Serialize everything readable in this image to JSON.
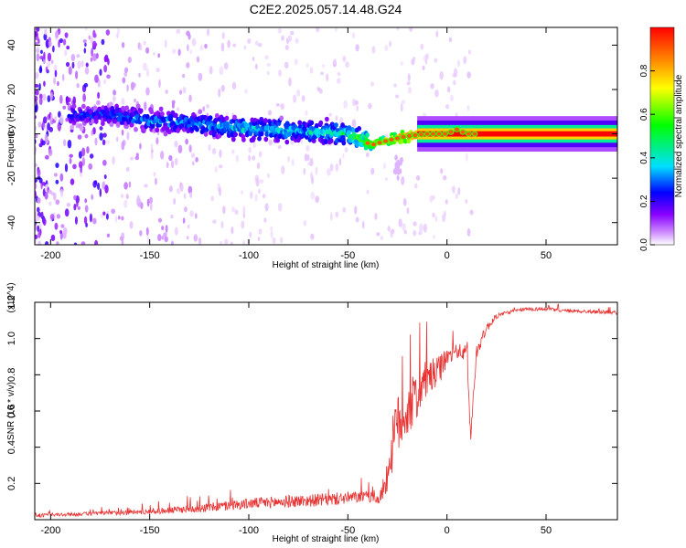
{
  "figure": {
    "title": "C2E2.2025.057.14.48.G24"
  },
  "chart_data": [
    {
      "type": "heatmap",
      "xlabel": "Height of straight line (km)",
      "ylabel": "Frequency (Hz)",
      "xlim": [
        -208,
        86
      ],
      "ylim": [
        -50,
        48
      ],
      "xticks": [
        -200,
        -150,
        -100,
        -50,
        0,
        50
      ],
      "yticks": [
        -40,
        -20,
        0,
        20,
        40
      ],
      "colorbar": {
        "label": "Normalized spectral amplitude",
        "range": [
          0,
          1
        ],
        "ticks": [
          0.0,
          0.2,
          0.4,
          0.6,
          0.8
        ],
        "colors": [
          "#ffffff",
          "#cc88ff",
          "#8800ff",
          "#0000ff",
          "#00e0ff",
          "#00ff00",
          "#ffff00",
          "#ff8800",
          "#ff0000"
        ]
      },
      "ridge": {
        "x": [
          -190,
          -170,
          -150,
          -130,
          -110,
          -90,
          -70,
          -50,
          -38,
          -30,
          -20,
          -10,
          0,
          5,
          10,
          20,
          50,
          86
        ],
        "y": [
          8,
          9,
          6,
          5,
          3,
          2,
          1,
          0,
          -5,
          -3,
          -1,
          0,
          0,
          2,
          0,
          0,
          0,
          0
        ],
        "amplitude": [
          0.35,
          0.4,
          0.45,
          0.45,
          0.5,
          0.5,
          0.5,
          0.55,
          0.7,
          0.8,
          0.9,
          0.95,
          0.95,
          0.95,
          0.95,
          1.0,
          1.0,
          1.0
        ]
      },
      "ridge_start_km": -190,
      "solid_line_start_km": -15
    },
    {
      "type": "line",
      "xlabel": "Height of straight line (km)",
      "ylabel": "SNR (10 * v/v)",
      "y_multiplier": "(x10^4)",
      "xlim": [
        -208,
        86
      ],
      "ylim": [
        0,
        1.2
      ],
      "xticks": [
        -200,
        -150,
        -100,
        -50,
        0,
        50
      ],
      "yticks": [
        0.2,
        0.4,
        0.6,
        0.8,
        1.0,
        1.2
      ],
      "series": [
        {
          "color": "#e83232",
          "envelope": {
            "x": [
              -208,
              -180,
              -150,
              -120,
              -100,
              -80,
              -60,
              -50,
              -40,
              -34,
              -30,
              -26,
              -20,
              -15,
              -10,
              -5,
              0,
              5,
              10,
              12,
              15,
              20,
              25,
              30,
              40,
              50,
              60,
              86
            ],
            "base": [
              0.02,
              0.03,
              0.04,
              0.06,
              0.08,
              0.09,
              0.1,
              0.11,
              0.12,
              0.1,
              0.22,
              0.45,
              0.55,
              0.65,
              0.75,
              0.78,
              0.88,
              0.92,
              0.9,
              0.45,
              0.92,
              1.05,
              1.12,
              1.14,
              1.16,
              1.16,
              1.15,
              1.14
            ],
            "spread": [
              0.02,
              0.02,
              0.03,
              0.05,
              0.06,
              0.07,
              0.07,
              0.07,
              0.06,
              0.06,
              0.2,
              0.35,
              0.3,
              0.28,
              0.2,
              0.18,
              0.1,
              0.08,
              0.1,
              0.1,
              0.08,
              0.05,
              0.03,
              0.02,
              0.02,
              0.02,
              0.02,
              0.02
            ]
          }
        }
      ]
    }
  ]
}
